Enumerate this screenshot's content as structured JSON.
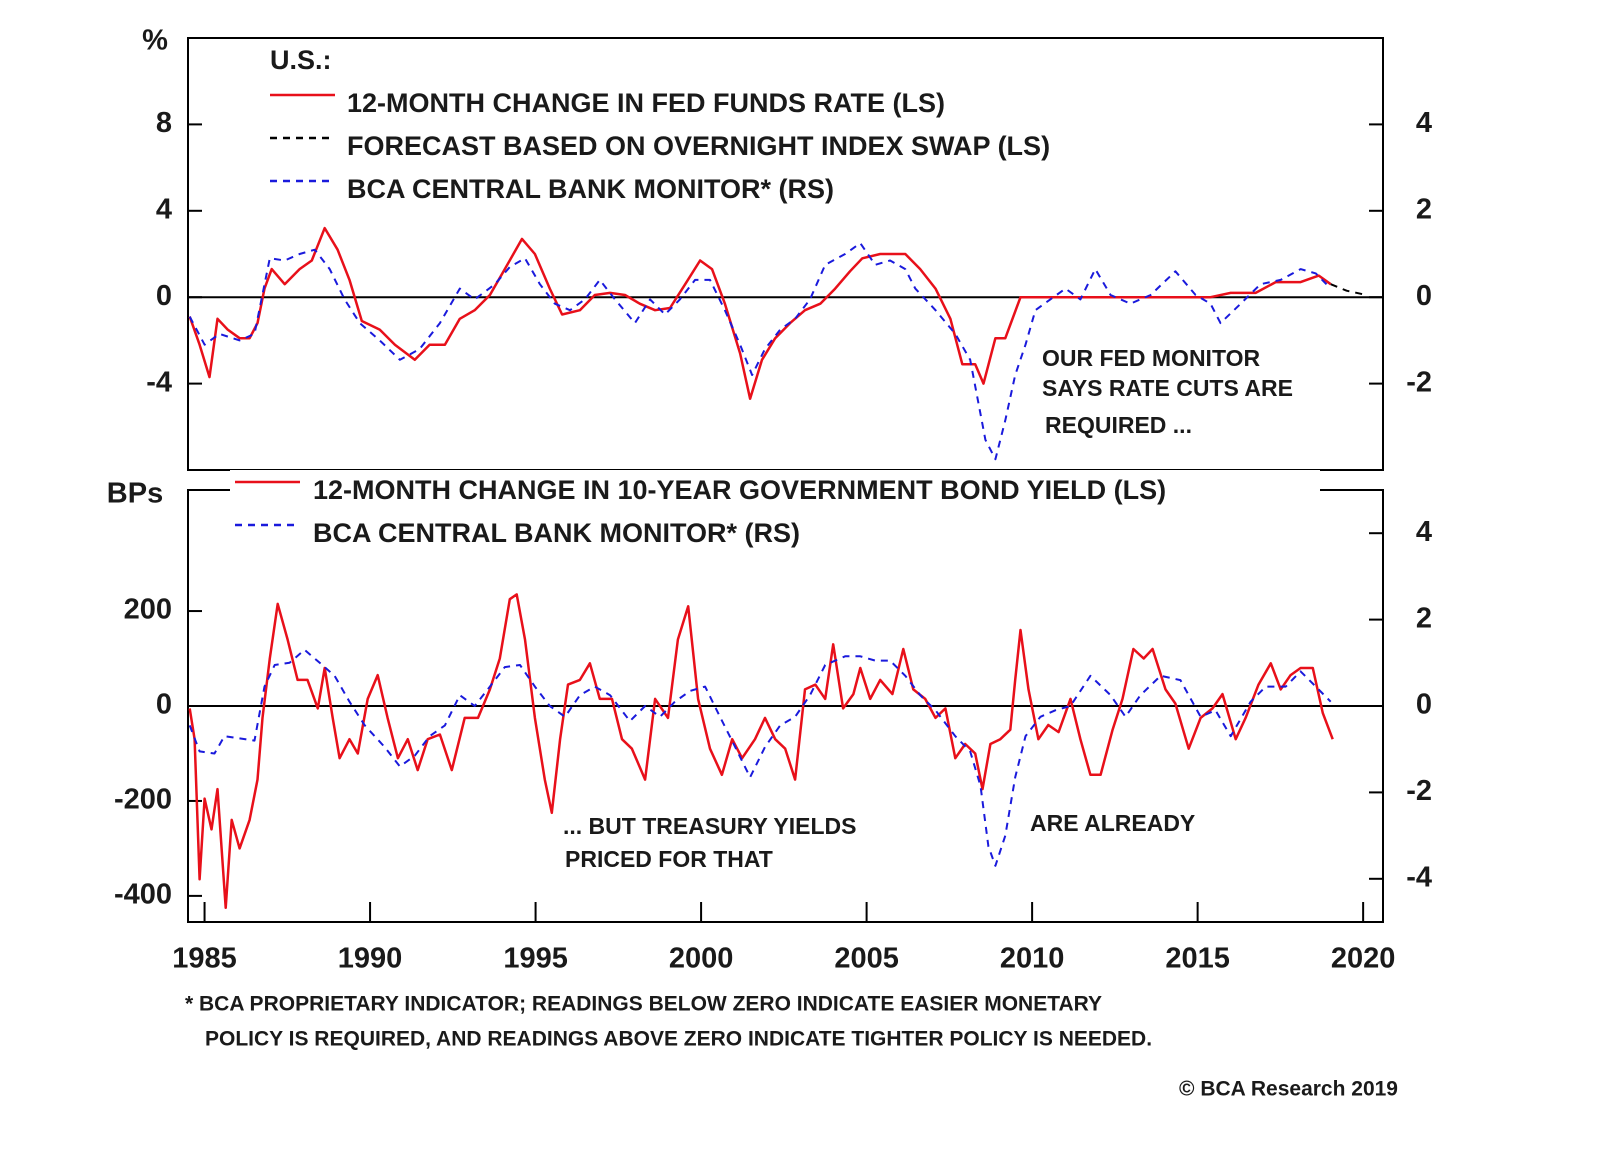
{
  "chart_data": [
    {
      "type": "line",
      "legend_title": "U.S.:",
      "y_unit_label": "%",
      "xlim": [
        1984.5,
        2020.6
      ],
      "ylim": [
        -8,
        12
      ],
      "yticks": [
        -4,
        0,
        4,
        8
      ],
      "y2lim": [
        -4,
        6
      ],
      "y2ticks": [
        -2,
        0,
        2,
        4
      ],
      "zero_line": true,
      "annotations": [
        "OUR FED MONITOR",
        "SAYS RATE CUTS ARE",
        "REQUIRED ..."
      ],
      "series": [
        {
          "name": "12-MONTH CHANGE IN FED FUNDS RATE (LS)",
          "color": "#e8101a",
          "axis": "y",
          "linestyle": "solid",
          "x": [
            1984.55,
            1984.85,
            1985.15,
            1985.39,
            1985.7,
            1986.06,
            1986.36,
            1986.6,
            1986.81,
            1987.03,
            1987.42,
            1987.87,
            1988.24,
            1988.63,
            1989.02,
            1989.38,
            1989.75,
            1990.29,
            1990.75,
            1991.35,
            1991.8,
            1992.26,
            1992.71,
            1993.16,
            1993.62,
            1994.07,
            1994.59,
            1994.98,
            1995.43,
            1995.8,
            1996.34,
            1996.79,
            1997.25,
            1997.7,
            1998.15,
            1998.61,
            1999.06,
            1999.52,
            1999.97,
            2000.33,
            2000.72,
            2001.18,
            2001.48,
            2001.84,
            2002.24,
            2002.69,
            2003.14,
            2003.6,
            2004.05,
            2004.5,
            2004.87,
            2005.41,
            2006.17,
            2006.62,
            2007.08,
            2007.53,
            2007.89,
            2008.28,
            2008.53,
            2008.89,
            2009.19,
            2009.65,
            2015.39,
            2016.0,
            2016.75,
            2017.36,
            2018.11,
            2018.66,
            2019.02
          ],
          "values": [
            -0.9,
            -2.2,
            -3.7,
            -1.0,
            -1.5,
            -1.9,
            -1.9,
            -1.2,
            0.4,
            1.3,
            0.6,
            1.3,
            1.7,
            3.2,
            2.2,
            0.8,
            -1.1,
            -1.5,
            -2.2,
            -2.9,
            -2.2,
            -2.2,
            -1.0,
            -0.6,
            0.1,
            1.3,
            2.7,
            2.0,
            0.4,
            -0.8,
            -0.6,
            0.1,
            0.2,
            0.1,
            -0.3,
            -0.6,
            -0.5,
            0.6,
            1.7,
            1.3,
            -0.3,
            -2.6,
            -4.7,
            -2.9,
            -1.9,
            -1.2,
            -0.6,
            -0.3,
            0.4,
            1.2,
            1.8,
            2.0,
            2.0,
            1.3,
            0.4,
            -1.0,
            -3.1,
            -3.1,
            -4.0,
            -1.9,
            -1.9,
            0,
            0,
            0.2,
            0.2,
            0.7,
            0.7,
            1.0,
            0.6
          ]
        },
        {
          "name": "FORECAST BASED ON OVERNIGHT INDEX SWAP (LS)",
          "color": "#000000",
          "axis": "y",
          "linestyle": "dashed",
          "x": [
            2019.02,
            2019.5,
            2020.1
          ],
          "values": [
            0.6,
            0.3,
            0.1
          ]
        },
        {
          "name": "BCA CENTRAL BANK MONITOR* (RS)",
          "color": "#1a1adc",
          "axis": "y2",
          "linestyle": "dashed",
          "x": [
            1984.55,
            1985.0,
            1985.45,
            1986.06,
            1986.51,
            1986.97,
            1987.42,
            1987.87,
            1988.33,
            1988.78,
            1989.23,
            1989.69,
            1990.29,
            1990.9,
            1991.5,
            1992.11,
            1992.71,
            1993.16,
            1993.77,
            1994.22,
            1994.68,
            1995.13,
            1995.58,
            1996.04,
            1996.49,
            1996.94,
            1997.4,
            1998.0,
            1998.46,
            1998.91,
            1999.36,
            1999.82,
            2000.27,
            2000.72,
            2001.18,
            2001.54,
            2001.93,
            2002.39,
            2002.84,
            2003.29,
            2003.75,
            2004.35,
            2004.81,
            2005.26,
            2005.71,
            2006.17,
            2006.47,
            2007.08,
            2007.68,
            2008.13,
            2008.59,
            2008.89,
            2009.19,
            2009.49,
            2009.8,
            2010.1,
            2010.55,
            2011.01,
            2011.46,
            2011.91,
            2012.37,
            2012.97,
            2013.58,
            2014.33,
            2014.94,
            2015.39,
            2015.69,
            2016.3,
            2016.9,
            2017.51,
            2018.11,
            2018.57,
            2019.02
          ],
          "values": [
            -0.45,
            -1.1,
            -0.85,
            -1.0,
            -0.85,
            0.9,
            0.85,
            1.0,
            1.1,
            0.65,
            -0.05,
            -0.6,
            -1.0,
            -1.45,
            -1.2,
            -0.6,
            0.2,
            -0.05,
            0.3,
            0.7,
            0.9,
            0.3,
            -0.15,
            -0.3,
            -0.05,
            0.4,
            -0.05,
            -0.6,
            -0.05,
            -0.4,
            -0.05,
            0.4,
            0.4,
            -0.3,
            -1.1,
            -1.8,
            -1.2,
            -0.75,
            -0.5,
            -0.05,
            0.75,
            1.0,
            1.25,
            0.75,
            0.85,
            0.65,
            0.2,
            -0.3,
            -0.85,
            -1.45,
            -3.3,
            -3.75,
            -2.85,
            -1.8,
            -1.1,
            -0.3,
            -0.05,
            0.2,
            -0.05,
            0.65,
            0.05,
            -0.15,
            0.05,
            0.6,
            0.05,
            -0.15,
            -0.6,
            -0.15,
            0.3,
            0.4,
            0.65,
            0.55,
            0.2
          ]
        }
      ]
    },
    {
      "type": "line",
      "y_unit_label": "BPs",
      "xlim": [
        1984.5,
        2020.6
      ],
      "xticks": [
        1985,
        1990,
        1995,
        2000,
        2005,
        2010,
        2015,
        2020
      ],
      "ylim": [
        -455,
        455
      ],
      "yticks": [
        -400,
        -200,
        0,
        200
      ],
      "y2lim": [
        -5,
        5
      ],
      "y2ticks": [
        -4,
        -2,
        0,
        2,
        4
      ],
      "zero_line": true,
      "annotations": [
        "... BUT TREASURY YIELDS",
        "PRICED FOR THAT",
        "ARE ALREADY"
      ],
      "series": [
        {
          "name": "12-MONTH CHANGE IN 10-YEAR GOVERNMENT BOND YIELD (LS)",
          "color": "#e8101a",
          "axis": "y",
          "linestyle": "solid",
          "x": [
            1984.55,
            1984.7,
            1984.85,
            1985.0,
            1985.21,
            1985.39,
            1985.64,
            1985.82,
            1986.06,
            1986.36,
            1986.6,
            1986.75,
            1986.97,
            1987.21,
            1987.51,
            1987.81,
            1988.11,
            1988.42,
            1988.63,
            1988.87,
            1989.08,
            1989.38,
            1989.63,
            1989.93,
            1990.23,
            1990.53,
            1990.84,
            1991.14,
            1991.44,
            1991.74,
            1992.11,
            1992.47,
            1992.86,
            1993.26,
            1993.62,
            1993.92,
            1994.22,
            1994.43,
            1994.68,
            1994.98,
            1995.28,
            1995.49,
            1995.74,
            1995.98,
            1996.34,
            1996.64,
            1996.94,
            1997.31,
            1997.61,
            1997.91,
            1998.31,
            1998.61,
            1999.0,
            1999.3,
            1999.61,
            1999.91,
            2000.27,
            2000.63,
            2000.94,
            2001.24,
            2001.63,
            2001.93,
            2002.24,
            2002.54,
            2002.84,
            2003.14,
            2003.45,
            2003.75,
            2003.99,
            2004.29,
            2004.6,
            2004.81,
            2005.11,
            2005.41,
            2005.78,
            2006.11,
            2006.41,
            2006.77,
            2007.08,
            2007.38,
            2007.68,
            2007.98,
            2008.28,
            2008.5,
            2008.74,
            2009.04,
            2009.34,
            2009.49,
            2009.65,
            2009.89,
            2010.19,
            2010.49,
            2010.8,
            2011.16,
            2011.46,
            2011.76,
            2012.07,
            2012.43,
            2012.73,
            2013.06,
            2013.37,
            2013.64,
            2014.03,
            2014.33,
            2014.73,
            2015.09,
            2015.45,
            2015.75,
            2016.15,
            2016.45,
            2016.84,
            2017.21,
            2017.51,
            2017.81,
            2018.11,
            2018.48,
            2018.78,
            2019.08
          ],
          "values": [
            -5,
            -70,
            -365,
            -195,
            -260,
            -175,
            -425,
            -240,
            -300,
            -240,
            -155,
            -25,
            100,
            215,
            140,
            55,
            55,
            -5,
            80,
            -25,
            -110,
            -70,
            -100,
            15,
            65,
            -25,
            -110,
            -70,
            -135,
            -70,
            -60,
            -135,
            -25,
            -25,
            35,
            100,
            225,
            235,
            140,
            -25,
            -155,
            -225,
            -70,
            45,
            55,
            90,
            15,
            15,
            -70,
            -90,
            -155,
            15,
            -25,
            140,
            210,
            15,
            -90,
            -145,
            -70,
            -110,
            -70,
            -25,
            -70,
            -90,
            -155,
            35,
            45,
            15,
            130,
            -5,
            25,
            80,
            15,
            55,
            25,
            120,
            35,
            15,
            -25,
            -5,
            -110,
            -80,
            -100,
            -175,
            -80,
            -70,
            -50,
            55,
            160,
            35,
            -70,
            -40,
            -55,
            15,
            -70,
            -145,
            -145,
            -50,
            15,
            120,
            100,
            120,
            35,
            5,
            -90,
            -25,
            -5,
            25,
            -70,
            -25,
            45,
            90,
            35,
            65,
            80,
            80,
            -15,
            -70
          ]
        },
        {
          "name": "BCA CENTRAL BANK MONITOR* (RS)",
          "color": "#1a1adc",
          "axis": "y2",
          "linestyle": "dashed",
          "x": [
            1984.55,
            1984.85,
            1985.3,
            1985.6,
            1986.06,
            1986.51,
            1986.81,
            1987.12,
            1987.57,
            1988.02,
            1988.48,
            1988.93,
            1989.38,
            1989.84,
            1990.44,
            1990.9,
            1991.35,
            1991.8,
            1992.26,
            1992.71,
            1993.16,
            1993.62,
            1994.07,
            1994.53,
            1994.98,
            1995.43,
            1995.89,
            1996.34,
            1996.79,
            1997.25,
            1997.85,
            1998.31,
            1998.76,
            1999.21,
            1999.67,
            2000.12,
            2000.57,
            2001.03,
            2001.48,
            2001.93,
            2002.39,
            2002.84,
            2003.29,
            2003.75,
            2004.35,
            2004.81,
            2005.26,
            2005.71,
            2006.17,
            2006.62,
            2007.08,
            2007.68,
            2008.13,
            2008.44,
            2008.68,
            2008.89,
            2009.19,
            2009.49,
            2009.8,
            2010.25,
            2010.7,
            2011.16,
            2011.76,
            2012.37,
            2012.82,
            2013.27,
            2013.88,
            2014.48,
            2015.09,
            2015.54,
            2016.0,
            2016.6,
            2017.06,
            2017.66,
            2018.11,
            2018.57,
            2019.02
          ],
          "values": [
            -0.45,
            -1.05,
            -1.1,
            -0.7,
            -0.75,
            -0.8,
            0.45,
            0.95,
            1.0,
            1.3,
            1.0,
            0.7,
            0.1,
            -0.45,
            -0.95,
            -1.4,
            -1.15,
            -0.7,
            -0.45,
            0.25,
            0,
            0.45,
            0.9,
            0.95,
            0.45,
            0,
            -0.25,
            0.25,
            0.45,
            0.25,
            -0.35,
            0,
            -0.25,
            0.1,
            0.35,
            0.45,
            -0.25,
            -0.95,
            -1.65,
            -0.95,
            -0.45,
            -0.25,
            0.25,
            0.95,
            1.15,
            1.15,
            1.05,
            1.05,
            0.7,
            0.25,
            -0.1,
            -0.7,
            -1.05,
            -1.85,
            -3.25,
            -3.7,
            -3.0,
            -1.65,
            -0.7,
            -0.25,
            -0.1,
            0,
            0.7,
            0.25,
            -0.25,
            0.25,
            0.7,
            0.6,
            -0.25,
            -0.1,
            -0.7,
            0.1,
            0.45,
            0.45,
            0.8,
            0.45,
            0.1
          ]
        }
      ]
    }
  ],
  "footnote": [
    "* BCA PROPRIETARY INDICATOR; READINGS BELOW ZERO INDICATE EASIER MONETARY",
    "POLICY IS REQUIRED, AND READINGS ABOVE ZERO INDICATE TIGHTER POLICY IS NEEDED."
  ],
  "source": "© BCA Research 2019"
}
